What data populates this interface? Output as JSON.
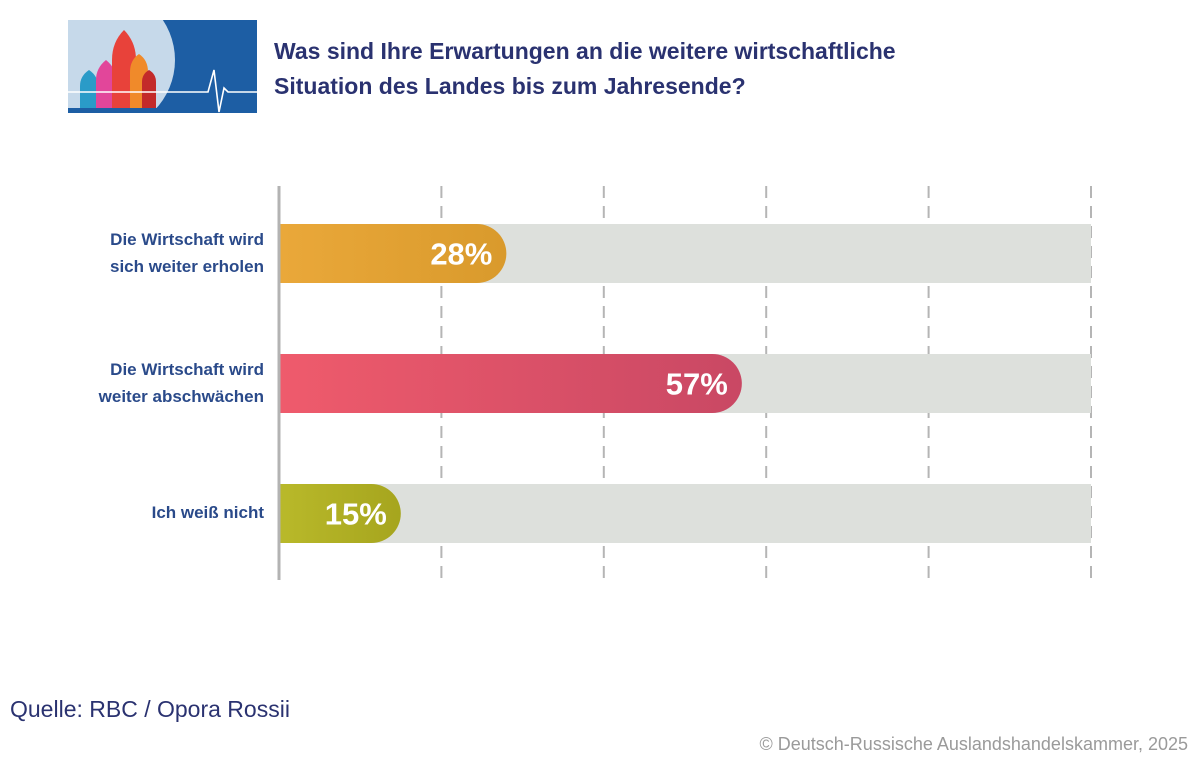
{
  "header": {
    "title_line1": "Was sind Ihre Erwartungen an die weitere wirtschaftliche",
    "title_line2": "Situation des Landes bis zum Jahresende?"
  },
  "footer": {
    "source": "Quelle: RBC / Opora Rossii",
    "copyright": "© Deutsch-Russische Auslandshandelskammer, 2025"
  },
  "chart_data": {
    "type": "bar",
    "orientation": "horizontal",
    "title": "Was sind Ihre Erwartungen an die weitere wirtschaftliche Situation des Landes bis zum Jahresende?",
    "categories": [
      [
        "Die Wirtschaft wird",
        "sich weiter erholen"
      ],
      [
        "Die Wirtschaft wird",
        "weiter abschwächen"
      ],
      [
        "Ich weiß nicht"
      ]
    ],
    "values": [
      28,
      57,
      15
    ],
    "value_labels": [
      "28%",
      "57%",
      "15%"
    ],
    "xlim": [
      0,
      100
    ],
    "grid": true,
    "colors": [
      {
        "from": "#eaa83a",
        "to": "#d99a2c"
      },
      {
        "from": "#ef5b6c",
        "to": "#c94864"
      },
      {
        "from": "#b9b92a",
        "to": "#a6a51e"
      }
    ],
    "track_color": "#dde0dc"
  }
}
